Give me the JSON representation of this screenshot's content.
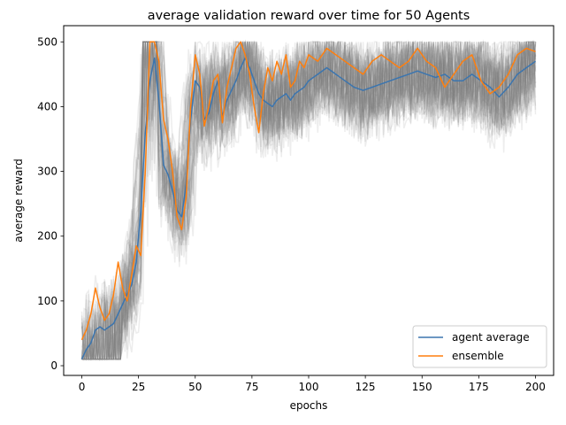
{
  "chart_data": {
    "type": "line",
    "title": "average validation reward over time for 50 Agents",
    "xlabel": "epochs",
    "ylabel": "average reward",
    "xlim": [
      -8,
      208
    ],
    "ylim": [
      -15,
      525
    ],
    "xticks": [
      0,
      25,
      50,
      75,
      100,
      125,
      150,
      175,
      200
    ],
    "yticks": [
      0,
      100,
      200,
      300,
      400,
      500
    ],
    "grid": false,
    "legend_position": "lower-right",
    "agent_curves_count": 50,
    "agent_curve_color": "#808080",
    "series": [
      {
        "name": "agent average",
        "color": "#3b75af",
        "x": [
          0,
          2,
          4,
          6,
          8,
          10,
          12,
          14,
          16,
          18,
          20,
          22,
          24,
          26,
          28,
          30,
          32,
          34,
          36,
          38,
          40,
          42,
          44,
          46,
          48,
          50,
          52,
          54,
          56,
          58,
          60,
          62,
          64,
          66,
          68,
          70,
          72,
          74,
          76,
          78,
          80,
          82,
          84,
          86,
          88,
          90,
          92,
          94,
          96,
          98,
          100,
          104,
          108,
          112,
          116,
          120,
          124,
          128,
          132,
          136,
          140,
          144,
          148,
          152,
          156,
          160,
          164,
          168,
          172,
          176,
          180,
          184,
          188,
          192,
          196,
          200
        ],
        "values": [
          10,
          25,
          35,
          55,
          60,
          55,
          60,
          65,
          80,
          95,
          110,
          125,
          160,
          240,
          360,
          440,
          475,
          410,
          310,
          295,
          270,
          240,
          230,
          280,
          380,
          440,
          430,
          380,
          390,
          420,
          440,
          385,
          410,
          425,
          440,
          460,
          475,
          460,
          440,
          420,
          410,
          405,
          400,
          410,
          415,
          420,
          410,
          420,
          425,
          430,
          440,
          450,
          460,
          450,
          440,
          430,
          425,
          430,
          435,
          440,
          445,
          450,
          455,
          450,
          445,
          450,
          440,
          440,
          450,
          440,
          430,
          415,
          430,
          450,
          460,
          470
        ]
      },
      {
        "name": "ensemble",
        "color": "#ff7f0e",
        "x": [
          0,
          2,
          4,
          6,
          8,
          10,
          12,
          14,
          16,
          18,
          20,
          22,
          24,
          26,
          28,
          30,
          32,
          34,
          36,
          38,
          40,
          42,
          44,
          46,
          48,
          50,
          52,
          54,
          56,
          58,
          60,
          62,
          64,
          66,
          68,
          70,
          72,
          74,
          76,
          78,
          80,
          82,
          84,
          86,
          88,
          90,
          92,
          94,
          96,
          98,
          100,
          104,
          108,
          112,
          116,
          120,
          124,
          128,
          132,
          136,
          140,
          144,
          148,
          152,
          156,
          160,
          164,
          168,
          172,
          176,
          180,
          184,
          188,
          192,
          196,
          200
        ],
        "values": [
          40,
          55,
          80,
          120,
          90,
          70,
          80,
          110,
          160,
          120,
          100,
          140,
          185,
          170,
          300,
          500,
          500,
          470,
          380,
          350,
          300,
          230,
          210,
          260,
          400,
          480,
          450,
          370,
          400,
          440,
          450,
          375,
          430,
          460,
          490,
          500,
          480,
          450,
          400,
          360,
          420,
          460,
          440,
          470,
          450,
          480,
          430,
          440,
          470,
          460,
          480,
          470,
          490,
          480,
          470,
          460,
          450,
          470,
          480,
          470,
          460,
          470,
          490,
          470,
          460,
          430,
          450,
          470,
          480,
          440,
          420,
          430,
          450,
          480,
          490,
          485
        ]
      }
    ]
  }
}
